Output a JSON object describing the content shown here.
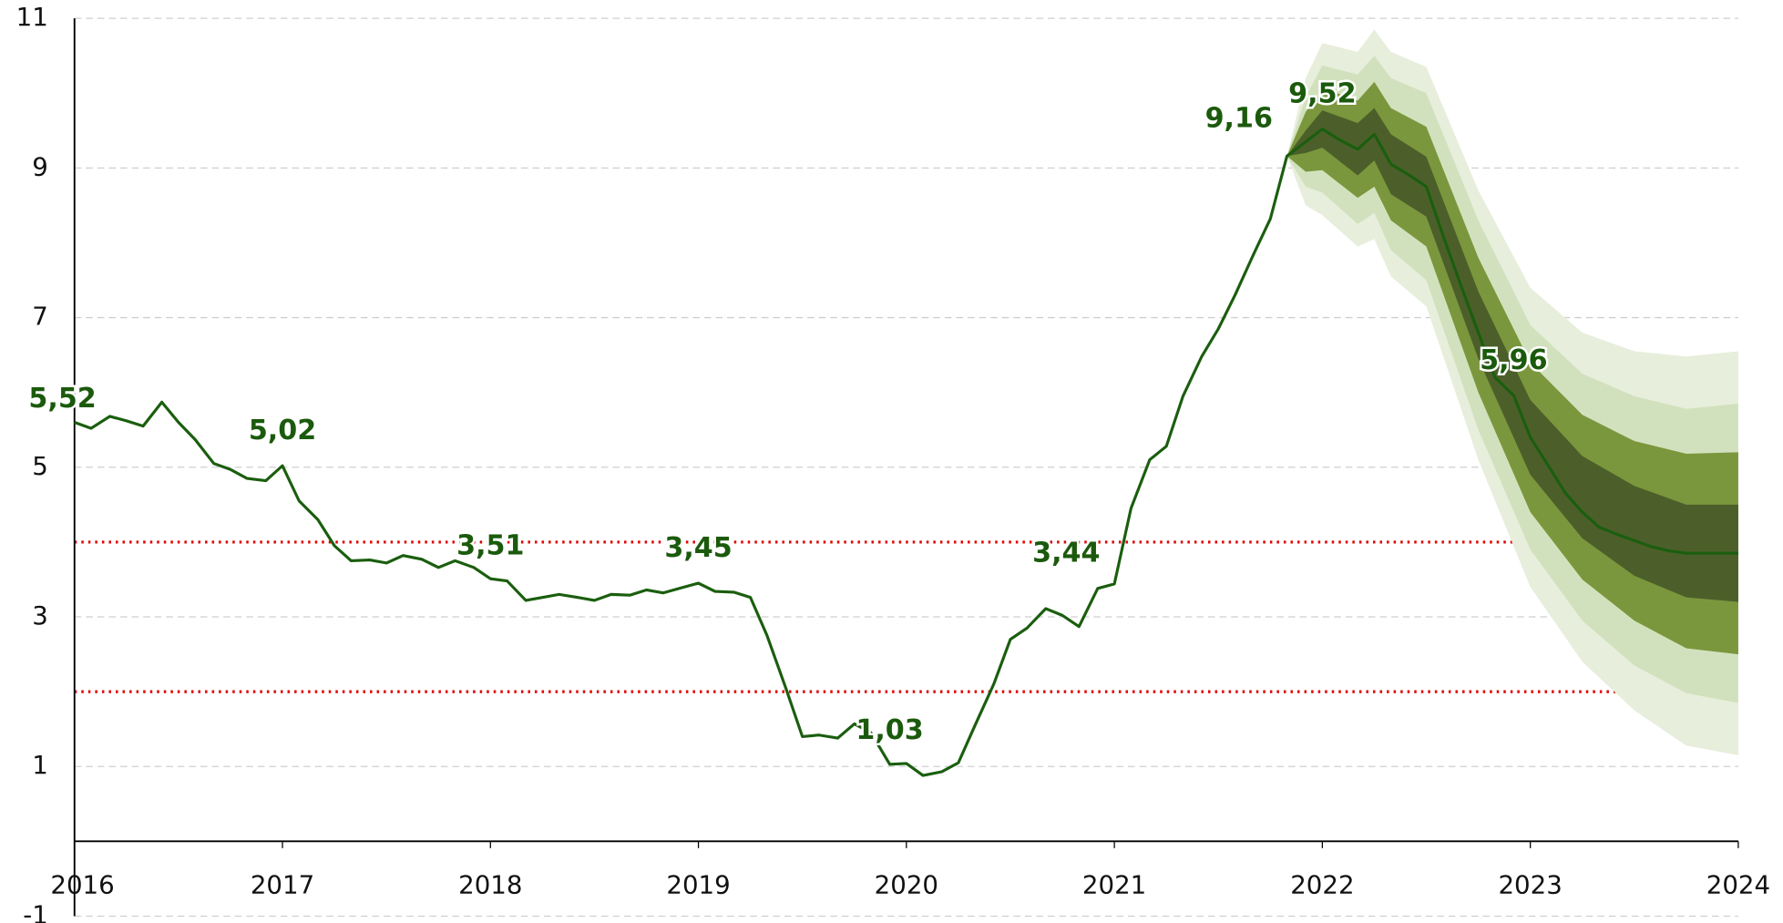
{
  "chart_data": {
    "type": "line",
    "xlim": [
      2016,
      2024
    ],
    "xticks": [
      2016,
      2017,
      2018,
      2019,
      2020,
      2021,
      2022,
      2023,
      2024
    ],
    "ylim": [
      -1,
      11
    ],
    "yticks": [
      -1,
      1,
      3,
      5,
      7,
      9,
      11
    ],
    "grid": true,
    "reference_lines": [
      2,
      4
    ],
    "reference_color": "#e00000",
    "x": [
      2016.0,
      2016.08,
      2016.17,
      2016.25,
      2016.33,
      2016.42,
      2016.5,
      2016.58,
      2016.67,
      2016.75,
      2016.83,
      2016.92,
      2017.0,
      2017.08,
      2017.17,
      2017.25,
      2017.33,
      2017.42,
      2017.5,
      2017.58,
      2017.67,
      2017.75,
      2017.83,
      2017.92,
      2018.0,
      2018.08,
      2018.17,
      2018.25,
      2018.33,
      2018.42,
      2018.5,
      2018.58,
      2018.67,
      2018.75,
      2018.83,
      2018.92,
      2019.0,
      2019.08,
      2019.17,
      2019.25,
      2019.33,
      2019.42,
      2019.5,
      2019.58,
      2019.67,
      2019.75,
      2019.83,
      2019.92,
      2020.0,
      2020.08,
      2020.17,
      2020.25,
      2020.33,
      2020.42,
      2020.5,
      2020.58,
      2020.67,
      2020.75,
      2020.83,
      2020.92,
      2021.0,
      2021.08,
      2021.17,
      2021.25,
      2021.33,
      2021.42,
      2021.5,
      2021.58,
      2021.67,
      2021.75,
      2021.83,
      2021.92,
      2022.0,
      2022.08,
      2022.17,
      2022.25,
      2022.33,
      2022.42,
      2022.5,
      2022.58,
      2022.67,
      2022.75,
      2022.83,
      2022.92,
      2023.0,
      2023.08,
      2023.17,
      2023.25,
      2023.33,
      2023.42,
      2023.5,
      2023.58,
      2023.67,
      2023.75,
      2023.83,
      2023.92,
      2024.0
    ],
    "series": [
      {
        "color": "#1a5e0e",
        "values": [
          5.6,
          5.52,
          5.68,
          5.62,
          5.55,
          5.87,
          5.6,
          5.37,
          5.05,
          4.97,
          4.85,
          4.82,
          5.02,
          4.55,
          4.3,
          3.95,
          3.75,
          3.76,
          3.72,
          3.82,
          3.77,
          3.66,
          3.75,
          3.66,
          3.51,
          3.48,
          3.22,
          3.26,
          3.3,
          3.26,
          3.22,
          3.3,
          3.29,
          3.36,
          3.32,
          3.39,
          3.45,
          3.34,
          3.33,
          3.26,
          2.75,
          2.05,
          1.4,
          1.42,
          1.38,
          1.57,
          1.45,
          1.03,
          1.04,
          0.88,
          0.93,
          1.05,
          1.55,
          2.1,
          2.7,
          2.85,
          3.11,
          3.02,
          2.87,
          3.38,
          3.44,
          4.45,
          5.1,
          5.28,
          5.95,
          6.48,
          6.85,
          7.3,
          7.85,
          8.32,
          9.16,
          9.35,
          9.52,
          9.38,
          9.25,
          9.45,
          9.05,
          8.9,
          8.75,
          8.1,
          7.4,
          6.8,
          6.2,
          5.96,
          5.4,
          5.05,
          4.65,
          4.4,
          4.2,
          4.1,
          4.02,
          3.94,
          3.88,
          3.85,
          3.85,
          3.85,
          3.85
        ]
      }
    ],
    "band_x": [
      2021.83,
      2021.92,
      2022.0,
      2022.17,
      2022.25,
      2022.33,
      2022.5,
      2022.75,
      2023.0,
      2023.25,
      2023.5,
      2023.75,
      2024.0
    ],
    "bands": [
      {
        "color": "#e7eedb",
        "lower": [
          9.16,
          8.5,
          8.37,
          7.95,
          8.05,
          7.55,
          7.15,
          5.1,
          3.4,
          2.4,
          1.75,
          1.28,
          1.15
        ],
        "upper": [
          9.16,
          10.2,
          10.67,
          10.55,
          10.85,
          10.55,
          10.35,
          8.7,
          7.4,
          6.8,
          6.55,
          6.48,
          6.55
        ]
      },
      {
        "color": "#d2e1bd",
        "lower": [
          9.16,
          8.75,
          8.67,
          8.25,
          8.4,
          7.9,
          7.5,
          5.5,
          3.9,
          2.95,
          2.35,
          1.98,
          1.85
        ],
        "upper": [
          9.16,
          9.95,
          10.37,
          10.25,
          10.5,
          10.2,
          10.0,
          8.3,
          6.9,
          6.25,
          5.95,
          5.78,
          5.85
        ]
      },
      {
        "color": "#7a973d",
        "lower": [
          9.16,
          8.95,
          8.97,
          8.6,
          8.75,
          8.3,
          7.95,
          6.0,
          4.4,
          3.5,
          2.95,
          2.58,
          2.5
        ],
        "upper": [
          9.16,
          9.75,
          10.07,
          9.9,
          10.15,
          9.8,
          9.55,
          7.8,
          6.4,
          5.7,
          5.35,
          5.18,
          5.2
        ]
      },
      {
        "color": "#4c5f2a",
        "lower": [
          9.16,
          9.2,
          9.27,
          8.9,
          9.1,
          8.65,
          8.35,
          6.45,
          4.9,
          4.05,
          3.55,
          3.26,
          3.2
        ],
        "upper": [
          9.16,
          9.5,
          9.77,
          9.6,
          9.8,
          9.45,
          9.15,
          7.35,
          5.9,
          5.15,
          4.75,
          4.5,
          4.5
        ]
      }
    ],
    "annotations": [
      {
        "text": "5,52",
        "x": 2016.08,
        "y": 5.52
      },
      {
        "text": "5,02",
        "x": 2017.0,
        "y": 5.02
      },
      {
        "text": "3,51",
        "x": 2018.0,
        "y": 3.51
      },
      {
        "text": "3,45",
        "x": 2019.0,
        "y": 3.45
      },
      {
        "text": "1,03",
        "x": 2019.92,
        "y": 1.03
      },
      {
        "text": "3,44",
        "x": 2021.0,
        "y": 3.44
      },
      {
        "text": "9,16",
        "x": 2021.83,
        "y": 9.16
      },
      {
        "text": "9,52",
        "x": 2022.0,
        "y": 9.52
      },
      {
        "text": "5,96",
        "x": 2022.92,
        "y": 5.96
      }
    ]
  }
}
